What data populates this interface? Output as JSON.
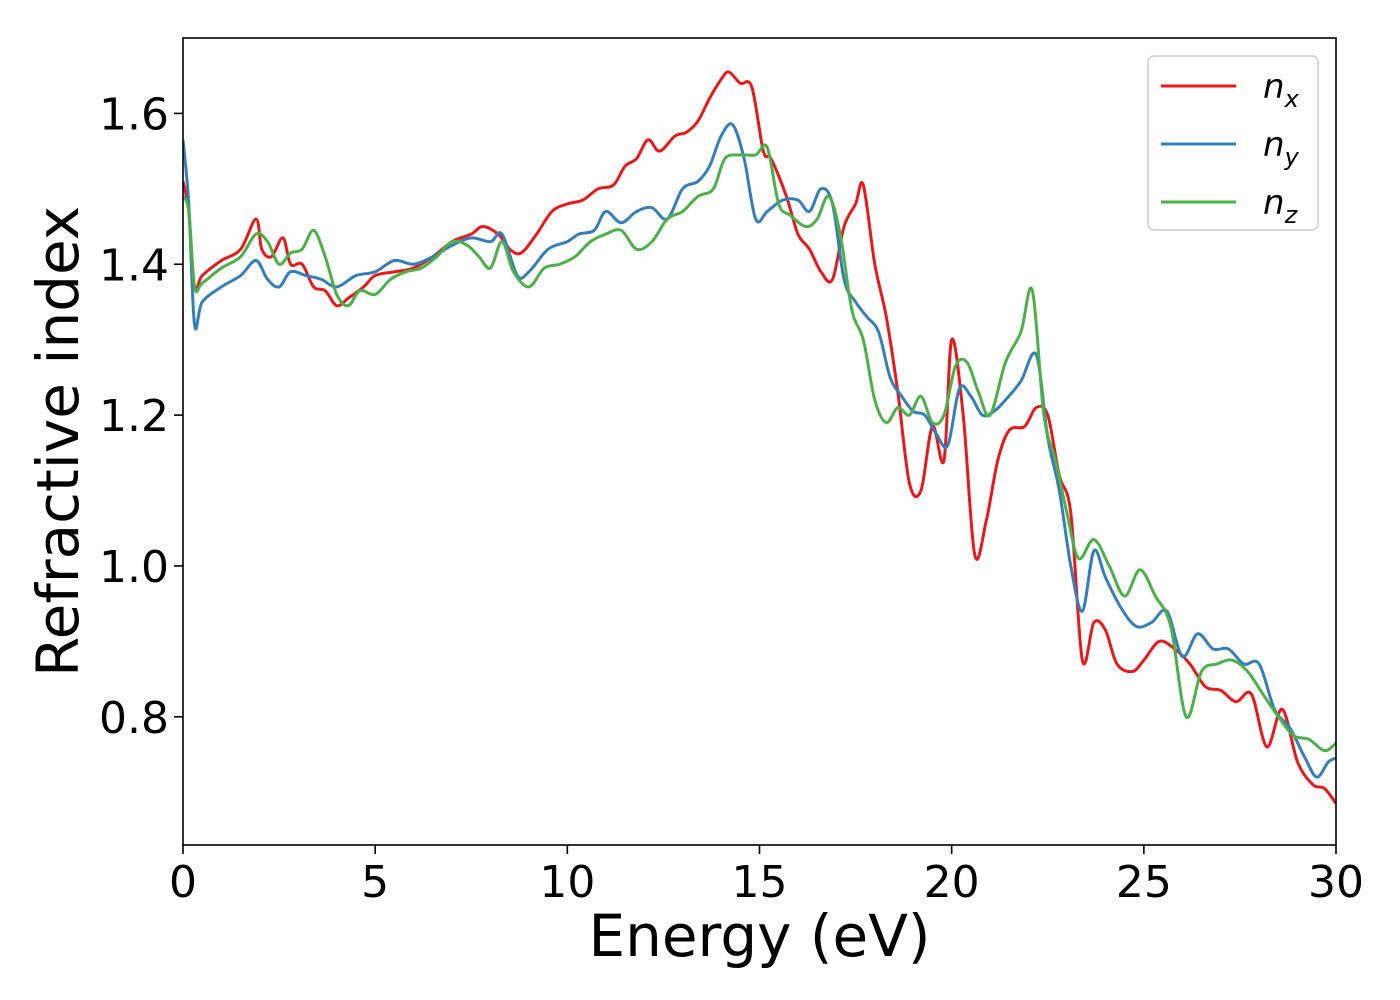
{
  "chart_data": {
    "type": "line",
    "title": "",
    "xlabel": "Energy (eV)",
    "ylabel": "Refractive index",
    "xlim": [
      0,
      30
    ],
    "ylim": [
      0.63,
      1.7
    ],
    "xticks": [
      0,
      5,
      10,
      15,
      20,
      25,
      30
    ],
    "yticks": [
      0.8,
      1.0,
      1.2,
      1.4,
      1.6
    ],
    "grid": false,
    "legend_position": "top-right",
    "series": [
      {
        "name": "n",
        "subscript": "x",
        "color": "#e41a1c",
        "points": [
          [
            0,
            1.51
          ],
          [
            0.15,
            1.47
          ],
          [
            0.3,
            1.37
          ],
          [
            0.5,
            1.385
          ],
          [
            1.0,
            1.405
          ],
          [
            1.5,
            1.42
          ],
          [
            1.9,
            1.46
          ],
          [
            2.05,
            1.42
          ],
          [
            2.3,
            1.41
          ],
          [
            2.6,
            1.435
          ],
          [
            2.8,
            1.4
          ],
          [
            3.1,
            1.4
          ],
          [
            3.4,
            1.37
          ],
          [
            3.7,
            1.365
          ],
          [
            4.0,
            1.345
          ],
          [
            4.3,
            1.355
          ],
          [
            4.7,
            1.37
          ],
          [
            5.0,
            1.385
          ],
          [
            5.5,
            1.39
          ],
          [
            6.0,
            1.395
          ],
          [
            6.5,
            1.41
          ],
          [
            7.0,
            1.43
          ],
          [
            7.5,
            1.44
          ],
          [
            7.8,
            1.45
          ],
          [
            8.2,
            1.44
          ],
          [
            8.5,
            1.42
          ],
          [
            8.8,
            1.415
          ],
          [
            9.2,
            1.44
          ],
          [
            9.6,
            1.47
          ],
          [
            10.0,
            1.48
          ],
          [
            10.4,
            1.485
          ],
          [
            10.8,
            1.5
          ],
          [
            11.2,
            1.505
          ],
          [
            11.5,
            1.53
          ],
          [
            11.8,
            1.54
          ],
          [
            12.1,
            1.565
          ],
          [
            12.4,
            1.55
          ],
          [
            12.8,
            1.57
          ],
          [
            13.1,
            1.575
          ],
          [
            13.4,
            1.59
          ],
          [
            13.7,
            1.62
          ],
          [
            14.0,
            1.645
          ],
          [
            14.2,
            1.655
          ],
          [
            14.5,
            1.64
          ],
          [
            14.8,
            1.635
          ],
          [
            15.1,
            1.55
          ],
          [
            15.3,
            1.54
          ],
          [
            15.7,
            1.49
          ],
          [
            16.0,
            1.44
          ],
          [
            16.3,
            1.42
          ],
          [
            16.6,
            1.39
          ],
          [
            16.9,
            1.38
          ],
          [
            17.2,
            1.45
          ],
          [
            17.5,
            1.48
          ],
          [
            17.7,
            1.505
          ],
          [
            18.0,
            1.4
          ],
          [
            18.3,
            1.33
          ],
          [
            18.6,
            1.23
          ],
          [
            18.9,
            1.11
          ],
          [
            19.2,
            1.1
          ],
          [
            19.5,
            1.185
          ],
          [
            19.8,
            1.14
          ],
          [
            20.0,
            1.3
          ],
          [
            20.3,
            1.2
          ],
          [
            20.6,
            1.015
          ],
          [
            20.9,
            1.06
          ],
          [
            21.2,
            1.14
          ],
          [
            21.5,
            1.18
          ],
          [
            21.9,
            1.185
          ],
          [
            22.2,
            1.21
          ],
          [
            22.5,
            1.2
          ],
          [
            22.8,
            1.12
          ],
          [
            23.1,
            1.07
          ],
          [
            23.4,
            0.875
          ],
          [
            23.7,
            0.925
          ],
          [
            24.0,
            0.915
          ],
          [
            24.3,
            0.87
          ],
          [
            24.7,
            0.86
          ],
          [
            25.0,
            0.875
          ],
          [
            25.4,
            0.9
          ],
          [
            25.8,
            0.89
          ],
          [
            26.2,
            0.87
          ],
          [
            26.6,
            0.84
          ],
          [
            27.0,
            0.835
          ],
          [
            27.4,
            0.82
          ],
          [
            27.8,
            0.83
          ],
          [
            28.2,
            0.76
          ],
          [
            28.6,
            0.81
          ],
          [
            29.0,
            0.74
          ],
          [
            29.4,
            0.71
          ],
          [
            29.7,
            0.705
          ],
          [
            30.0,
            0.685
          ]
        ]
      },
      {
        "name": "n",
        "subscript": "y",
        "color": "#377eb8",
        "points": [
          [
            0,
            1.565
          ],
          [
            0.15,
            1.48
          ],
          [
            0.3,
            1.32
          ],
          [
            0.5,
            1.35
          ],
          [
            1.0,
            1.37
          ],
          [
            1.5,
            1.385
          ],
          [
            1.9,
            1.405
          ],
          [
            2.2,
            1.38
          ],
          [
            2.5,
            1.37
          ],
          [
            2.8,
            1.39
          ],
          [
            3.2,
            1.385
          ],
          [
            3.6,
            1.38
          ],
          [
            4.0,
            1.37
          ],
          [
            4.5,
            1.385
          ],
          [
            5.0,
            1.39
          ],
          [
            5.5,
            1.405
          ],
          [
            6.0,
            1.4
          ],
          [
            6.5,
            1.41
          ],
          [
            7.0,
            1.425
          ],
          [
            7.5,
            1.435
          ],
          [
            8.0,
            1.43
          ],
          [
            8.3,
            1.44
          ],
          [
            8.7,
            1.385
          ],
          [
            9.0,
            1.39
          ],
          [
            9.5,
            1.42
          ],
          [
            10.0,
            1.43
          ],
          [
            10.3,
            1.44
          ],
          [
            10.7,
            1.445
          ],
          [
            11.0,
            1.47
          ],
          [
            11.4,
            1.455
          ],
          [
            11.8,
            1.47
          ],
          [
            12.2,
            1.475
          ],
          [
            12.6,
            1.46
          ],
          [
            13.0,
            1.5
          ],
          [
            13.4,
            1.51
          ],
          [
            13.7,
            1.53
          ],
          [
            14.0,
            1.57
          ],
          [
            14.3,
            1.585
          ],
          [
            14.6,
            1.54
          ],
          [
            14.9,
            1.46
          ],
          [
            15.2,
            1.47
          ],
          [
            15.6,
            1.485
          ],
          [
            16.0,
            1.485
          ],
          [
            16.3,
            1.47
          ],
          [
            16.6,
            1.5
          ],
          [
            16.9,
            1.48
          ],
          [
            17.2,
            1.38
          ],
          [
            17.5,
            1.35
          ],
          [
            17.8,
            1.33
          ],
          [
            18.1,
            1.31
          ],
          [
            18.4,
            1.25
          ],
          [
            18.7,
            1.225
          ],
          [
            19.0,
            1.205
          ],
          [
            19.3,
            1.2
          ],
          [
            19.6,
            1.175
          ],
          [
            19.9,
            1.16
          ],
          [
            20.2,
            1.235
          ],
          [
            20.5,
            1.225
          ],
          [
            20.8,
            1.2
          ],
          [
            21.1,
            1.205
          ],
          [
            21.4,
            1.22
          ],
          [
            21.8,
            1.245
          ],
          [
            22.2,
            1.28
          ],
          [
            22.5,
            1.17
          ],
          [
            22.8,
            1.1
          ],
          [
            23.1,
            1.0
          ],
          [
            23.4,
            0.94
          ],
          [
            23.7,
            1.02
          ],
          [
            24.0,
            0.985
          ],
          [
            24.4,
            0.945
          ],
          [
            24.8,
            0.92
          ],
          [
            25.2,
            0.925
          ],
          [
            25.6,
            0.94
          ],
          [
            26.0,
            0.88
          ],
          [
            26.4,
            0.91
          ],
          [
            26.8,
            0.89
          ],
          [
            27.2,
            0.89
          ],
          [
            27.6,
            0.87
          ],
          [
            28.0,
            0.87
          ],
          [
            28.4,
            0.81
          ],
          [
            28.8,
            0.785
          ],
          [
            29.2,
            0.745
          ],
          [
            29.5,
            0.72
          ],
          [
            29.8,
            0.74
          ],
          [
            30.0,
            0.745
          ]
        ]
      },
      {
        "name": "n",
        "subscript": "z",
        "color": "#4daf4a",
        "points": [
          [
            0,
            1.49
          ],
          [
            0.15,
            1.47
          ],
          [
            0.3,
            1.37
          ],
          [
            0.5,
            1.375
          ],
          [
            1.0,
            1.395
          ],
          [
            1.5,
            1.41
          ],
          [
            1.9,
            1.44
          ],
          [
            2.2,
            1.43
          ],
          [
            2.5,
            1.4
          ],
          [
            2.8,
            1.415
          ],
          [
            3.1,
            1.42
          ],
          [
            3.4,
            1.445
          ],
          [
            3.7,
            1.41
          ],
          [
            4.0,
            1.36
          ],
          [
            4.3,
            1.345
          ],
          [
            4.6,
            1.365
          ],
          [
            5.0,
            1.36
          ],
          [
            5.4,
            1.38
          ],
          [
            5.8,
            1.39
          ],
          [
            6.2,
            1.395
          ],
          [
            6.6,
            1.41
          ],
          [
            7.0,
            1.43
          ],
          [
            7.4,
            1.425
          ],
          [
            7.7,
            1.41
          ],
          [
            8.0,
            1.395
          ],
          [
            8.3,
            1.43
          ],
          [
            8.6,
            1.39
          ],
          [
            9.0,
            1.37
          ],
          [
            9.4,
            1.395
          ],
          [
            9.8,
            1.4
          ],
          [
            10.2,
            1.41
          ],
          [
            10.6,
            1.43
          ],
          [
            11.0,
            1.44
          ],
          [
            11.4,
            1.445
          ],
          [
            11.8,
            1.42
          ],
          [
            12.2,
            1.43
          ],
          [
            12.6,
            1.46
          ],
          [
            13.0,
            1.47
          ],
          [
            13.4,
            1.49
          ],
          [
            13.8,
            1.5
          ],
          [
            14.1,
            1.54
          ],
          [
            14.5,
            1.545
          ],
          [
            14.9,
            1.545
          ],
          [
            15.2,
            1.555
          ],
          [
            15.5,
            1.48
          ],
          [
            15.8,
            1.465
          ],
          [
            16.2,
            1.45
          ],
          [
            16.5,
            1.46
          ],
          [
            16.8,
            1.49
          ],
          [
            17.1,
            1.44
          ],
          [
            17.4,
            1.34
          ],
          [
            17.7,
            1.3
          ],
          [
            18.0,
            1.22
          ],
          [
            18.3,
            1.19
          ],
          [
            18.6,
            1.21
          ],
          [
            18.9,
            1.2
          ],
          [
            19.2,
            1.225
          ],
          [
            19.5,
            1.19
          ],
          [
            19.8,
            1.2
          ],
          [
            20.1,
            1.265
          ],
          [
            20.4,
            1.27
          ],
          [
            20.7,
            1.23
          ],
          [
            21.0,
            1.2
          ],
          [
            21.4,
            1.27
          ],
          [
            21.8,
            1.31
          ],
          [
            22.1,
            1.365
          ],
          [
            22.4,
            1.2
          ],
          [
            22.7,
            1.14
          ],
          [
            23.0,
            1.07
          ],
          [
            23.3,
            1.01
          ],
          [
            23.7,
            1.035
          ],
          [
            24.1,
            1.0
          ],
          [
            24.5,
            0.96
          ],
          [
            24.9,
            0.995
          ],
          [
            25.3,
            0.96
          ],
          [
            25.7,
            0.92
          ],
          [
            26.1,
            0.8
          ],
          [
            26.5,
            0.86
          ],
          [
            26.9,
            0.87
          ],
          [
            27.3,
            0.875
          ],
          [
            27.7,
            0.86
          ],
          [
            28.1,
            0.83
          ],
          [
            28.5,
            0.8
          ],
          [
            28.9,
            0.775
          ],
          [
            29.3,
            0.77
          ],
          [
            29.7,
            0.755
          ],
          [
            30.0,
            0.765
          ]
        ]
      }
    ]
  }
}
